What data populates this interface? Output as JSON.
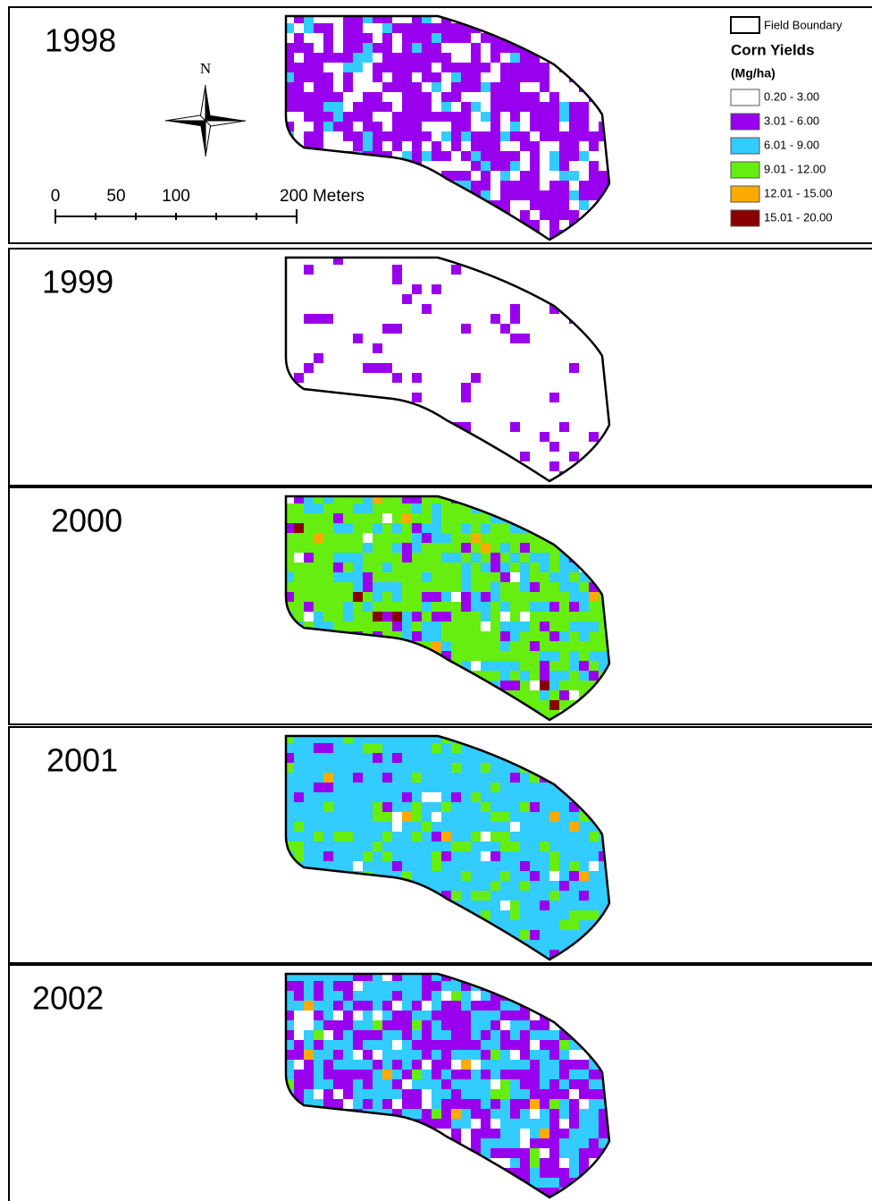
{
  "panels": [
    {
      "year": "1998"
    },
    {
      "year": "1999"
    },
    {
      "year": "2000"
    },
    {
      "year": "2001"
    },
    {
      "year": "2002"
    }
  ],
  "north_arrow": {
    "label": "N"
  },
  "scale_bar": {
    "labels": [
      "0",
      "50",
      "100",
      "200 Meters"
    ]
  },
  "legend": {
    "boundary_label": "Field Boundary",
    "title": "Corn Yields",
    "unit": "(Mg/ha)",
    "classes": [
      {
        "label": "0.20 - 3.00",
        "color": "#ffffff"
      },
      {
        "label": "3.01 - 6.00",
        "color": "#9900ee"
      },
      {
        "label": "6.01 - 9.00",
        "color": "#33ccff"
      },
      {
        "label": "9.01 - 12.00",
        "color": "#66ee11"
      },
      {
        "label": "12.01 - 15.00",
        "color": "#ffaa00"
      },
      {
        "label": "15.01 - 20.00",
        "color": "#880000"
      }
    ]
  }
}
